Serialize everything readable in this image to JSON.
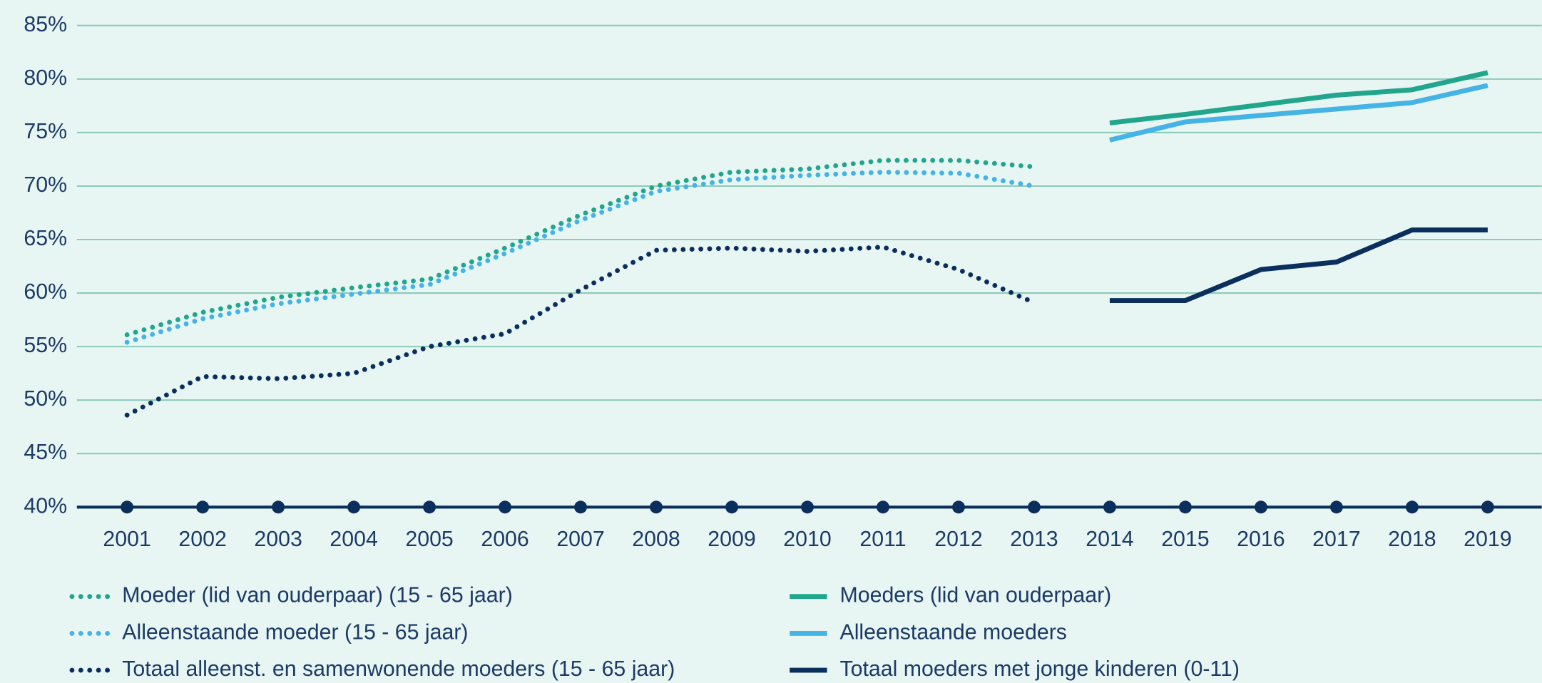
{
  "chart_data": {
    "type": "line",
    "categories": [
      "2001",
      "2002",
      "2003",
      "2004",
      "2005",
      "2006",
      "2007",
      "2008",
      "2009",
      "2010",
      "2011",
      "2012",
      "2013",
      "2014",
      "2015",
      "2016",
      "2017",
      "2018",
      "2019"
    ],
    "series": [
      {
        "name": "Moeder (lid van ouderpaar) (15 - 65 jaar)",
        "color": "#21a68d",
        "style": "dotted",
        "values": [
          56.1,
          58.2,
          59.6,
          60.5,
          61.3,
          64.2,
          67.3,
          70.0,
          71.3,
          71.6,
          72.4,
          72.4,
          71.8,
          null,
          null,
          null,
          null,
          null,
          null
        ]
      },
      {
        "name": "Alleenstaande moeder (15 - 65 jaar)",
        "color": "#45b3e6",
        "style": "dotted",
        "values": [
          55.4,
          57.6,
          59.0,
          59.9,
          60.8,
          63.7,
          66.8,
          69.5,
          70.6,
          71.0,
          71.3,
          71.2,
          70.0,
          null,
          null,
          null,
          null,
          null,
          null
        ]
      },
      {
        "name": "Totaal alleenst. en samenwonende moeders (15 - 65 jaar)",
        "color": "#0a2f5c",
        "style": "dotted",
        "values": [
          48.6,
          52.2,
          52.0,
          52.5,
          55.0,
          56.2,
          60.3,
          64.0,
          64.2,
          63.9,
          64.3,
          62.2,
          59.1,
          null,
          null,
          null,
          null,
          null,
          null
        ]
      },
      {
        "name": "Moeders (lid van ouderpaar)",
        "color": "#21a68d",
        "style": "solid",
        "values": [
          null,
          null,
          null,
          null,
          null,
          null,
          null,
          null,
          null,
          null,
          null,
          null,
          null,
          75.9,
          76.7,
          77.6,
          78.5,
          79.0,
          80.6
        ]
      },
      {
        "name": "Alleenstaande moeders",
        "color": "#45b3e6",
        "style": "solid",
        "values": [
          null,
          null,
          null,
          null,
          null,
          null,
          null,
          null,
          null,
          null,
          null,
          null,
          null,
          74.3,
          76.0,
          76.6,
          77.2,
          77.8,
          79.4
        ]
      },
      {
        "name": "Totaal moeders met jonge kinderen (0-11)",
        "color": "#0a2f5c",
        "style": "solid",
        "values": [
          null,
          null,
          null,
          null,
          null,
          null,
          null,
          null,
          null,
          null,
          null,
          null,
          null,
          59.3,
          59.3,
          62.2,
          62.9,
          65.9,
          65.9
        ]
      }
    ],
    "ylim": [
      40,
      85
    ],
    "yticks": [
      {
        "value": 40,
        "label": "40%"
      },
      {
        "value": 45,
        "label": "45%"
      },
      {
        "value": 50,
        "label": "50%"
      },
      {
        "value": 55,
        "label": "55%"
      },
      {
        "value": 60,
        "label": "60%"
      },
      {
        "value": 65,
        "label": "65%"
      },
      {
        "value": 70,
        "label": "70%"
      },
      {
        "value": 75,
        "label": "75%"
      },
      {
        "value": 80,
        "label": "80%"
      },
      {
        "value": 85,
        "label": "85%"
      }
    ],
    "grid": true
  }
}
